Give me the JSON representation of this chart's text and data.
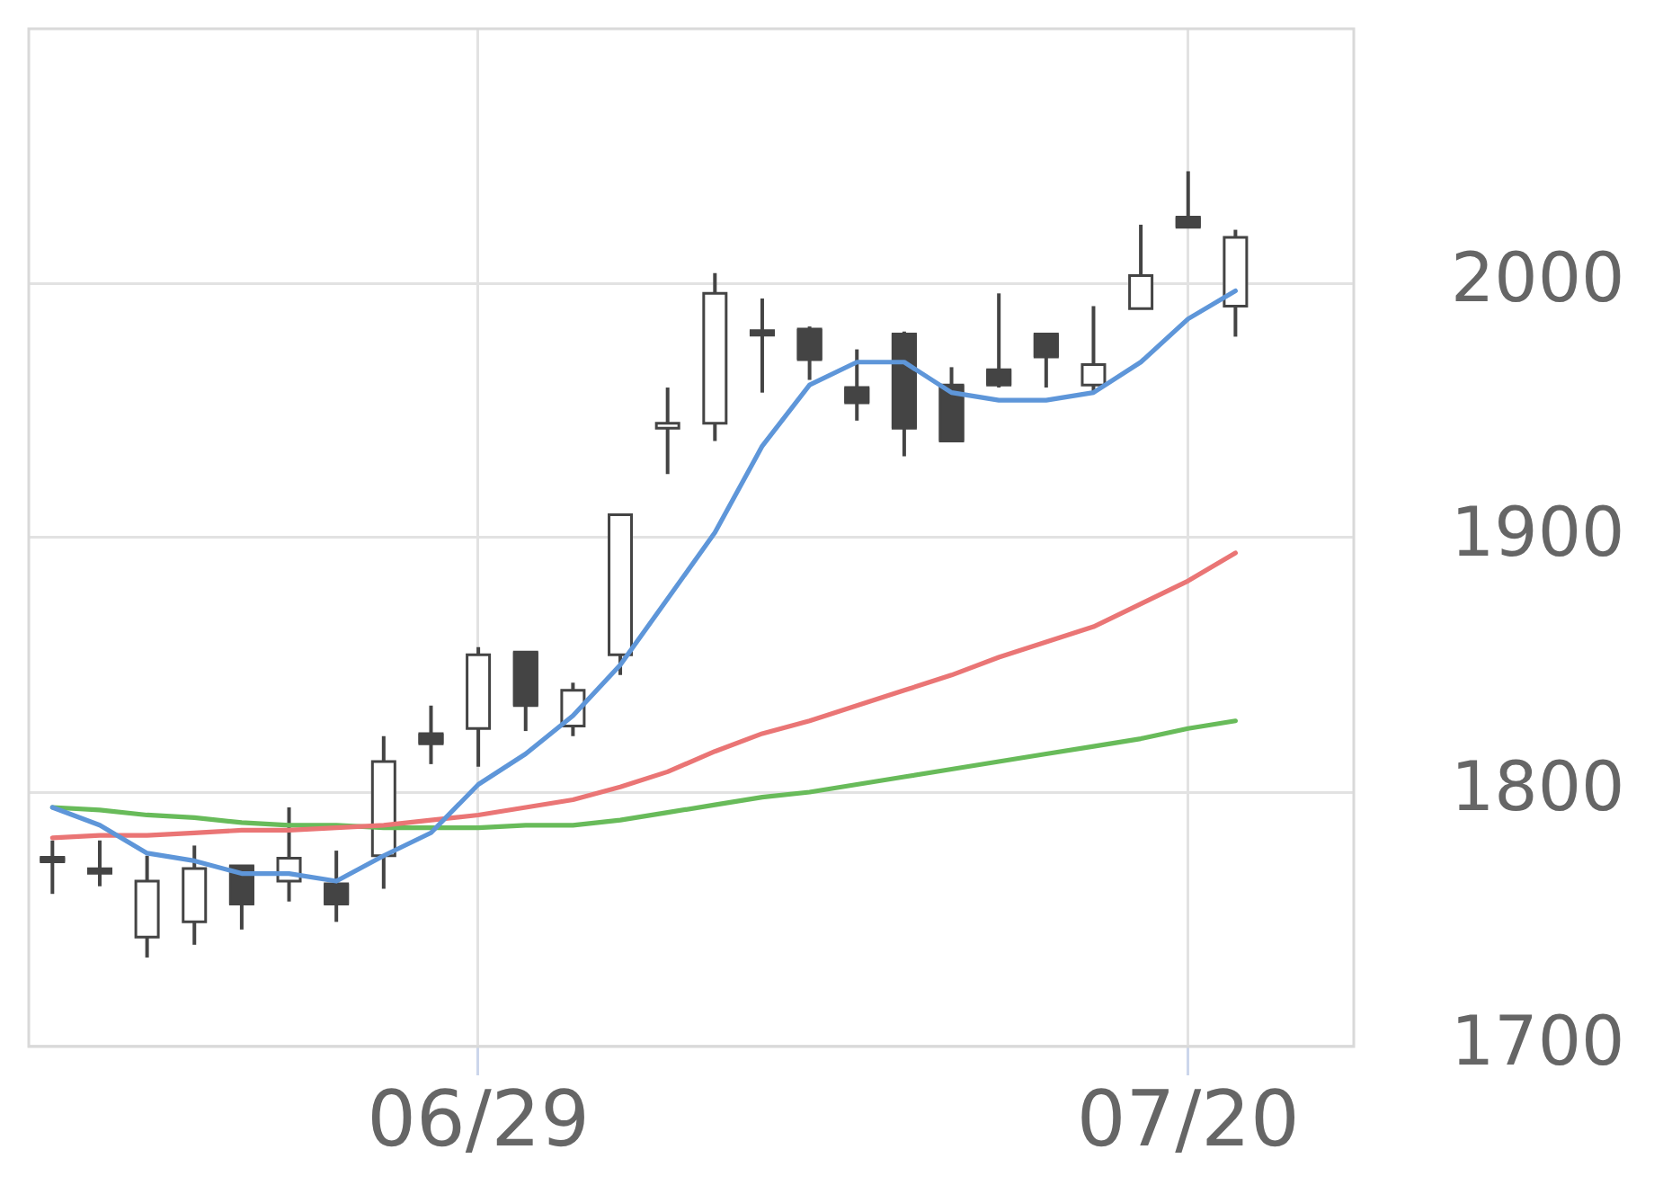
{
  "chart_data": {
    "type": "candlestick",
    "color": "#444444",
    "colors": [
      "#444444",
      "#444444",
      "#ffffff",
      "#ffffff",
      "#444444",
      "#ffffff",
      "#444444",
      "#ffffff",
      "#444444",
      "#ffffff",
      "#444444",
      "#ffffff",
      "#ffffff",
      "#ffffff",
      "#ffffff",
      "#444444",
      "#444444",
      "#444444",
      "#444444",
      "#444444",
      "#444444",
      "#444444",
      "#ffffff",
      "#ffffff",
      "#444444",
      "#ffffff",
      null,
      null
    ],
    "categories": [
      null,
      null,
      null,
      null,
      null,
      null,
      null,
      null,
      null,
      "06/29",
      null,
      null,
      null,
      null,
      null,
      null,
      null,
      null,
      null,
      null,
      null,
      null,
      null,
      null,
      "07/20",
      null,
      null,
      null
    ],
    "ohlc": [
      [
        1774,
        1781,
        1760,
        1773
      ],
      [
        1769,
        1781,
        1763,
        1769
      ],
      [
        1743,
        1775,
        1735,
        1765
      ],
      [
        1749,
        1779,
        1740,
        1770
      ],
      [
        1771,
        1771,
        1746,
        1756
      ],
      [
        1765,
        1794,
        1757,
        1774
      ],
      [
        1764,
        1777,
        1749,
        1756
      ],
      [
        1775,
        1822,
        1762,
        1812
      ],
      [
        1823,
        1834,
        1811,
        1819
      ],
      [
        1825,
        1857,
        1810,
        1854
      ],
      [
        1855,
        1855,
        1824,
        1834
      ],
      [
        1826,
        1843,
        1822,
        1840
      ],
      [
        1854,
        1909,
        1846,
        1909
      ],
      [
        1943,
        1959,
        1925,
        1945
      ],
      [
        1945,
        2004,
        1938,
        1996
      ],
      [
        1981,
        1994,
        1957,
        1980
      ],
      [
        1982,
        1983,
        1962,
        1970
      ],
      [
        1959,
        1974,
        1946,
        1953
      ],
      [
        1980,
        1981,
        1932,
        1943
      ],
      [
        1960,
        1967,
        1938,
        1938
      ],
      [
        1966,
        1996,
        1959,
        1960
      ],
      [
        1980,
        1980,
        1959,
        1971
      ],
      [
        1960,
        1991,
        1957,
        1968
      ],
      [
        1990,
        2023,
        1990,
        2003
      ],
      [
        2026,
        2044,
        2022,
        2022
      ],
      [
        1991,
        2021,
        1979,
        2018
      ],
      null,
      null
    ],
    "series": [
      {
        "type": "line",
        "color": "#5e96d9",
        "values": [
          1794,
          1787,
          1776,
          1773,
          1768,
          1768,
          1765,
          1775,
          1784,
          1803,
          1815,
          1830,
          1850,
          1876,
          1902,
          1936,
          1960,
          1969,
          1969,
          1957,
          1954,
          1954,
          1957,
          1969,
          1986,
          1997,
          null,
          null
        ]
      },
      {
        "type": "line",
        "color": "#ea7575",
        "values": [
          1782,
          1783,
          1783,
          1784,
          1785,
          1785,
          1786,
          1787,
          1789,
          1791,
          1794,
          1797,
          1802,
          1808,
          1816,
          1823,
          1828,
          1834,
          1840,
          1846,
          1853,
          1859,
          1865,
          1874,
          1883,
          1894,
          null,
          null
        ]
      },
      {
        "type": "line",
        "color": "#68bb5a",
        "values": [
          1794,
          1793,
          1791,
          1790,
          1788,
          1787,
          1787,
          1786,
          1786,
          1786,
          1787,
          1787,
          1789,
          1792,
          1795,
          1798,
          1800,
          1803,
          1806,
          1809,
          1812,
          1815,
          1818,
          1821,
          1825,
          1828,
          null,
          null
        ]
      }
    ],
    "ylim": [
      1700,
      2100
    ],
    "yticks": [
      1700,
      1800,
      1900,
      2000
    ],
    "grid": true,
    "legend": false
  }
}
